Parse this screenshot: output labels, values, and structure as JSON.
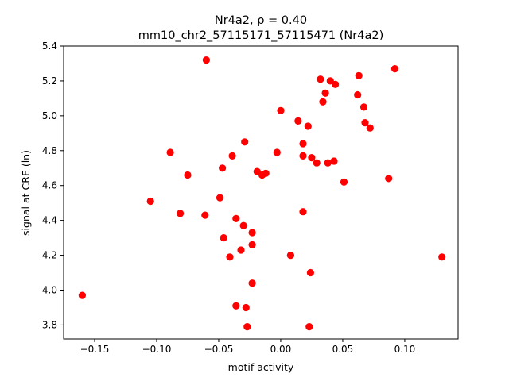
{
  "chart_data": {
    "type": "scatter",
    "title_line1": "Nr4a2, ρ = 0.40",
    "title_line2": "mm10_chr2_57115171_57115471 (Nr4a2)",
    "xlabel": "motif activity",
    "ylabel": "signal at CRE (ln)",
    "xlim": [
      -0.175,
      0.143
    ],
    "ylim": [
      3.72,
      5.4
    ],
    "xticks": [
      -0.15,
      -0.1,
      -0.05,
      0.0,
      0.05,
      0.1
    ],
    "xtick_labels": [
      "−0.15",
      "−0.10",
      "−0.05",
      "0.00",
      "0.05",
      "0.10"
    ],
    "yticks": [
      3.8,
      4.0,
      4.2,
      4.4,
      4.6,
      4.8,
      5.0,
      5.2,
      5.4
    ],
    "ytick_labels": [
      "3.8",
      "4.0",
      "4.2",
      "4.4",
      "4.6",
      "4.8",
      "5.0",
      "5.2",
      "5.4"
    ],
    "grid": false,
    "marker_color": "#ff0000",
    "points": [
      {
        "x": -0.06,
        "y": 5.32
      },
      {
        "x": 0.092,
        "y": 5.27
      },
      {
        "x": 0.063,
        "y": 5.23
      },
      {
        "x": 0.032,
        "y": 5.21
      },
      {
        "x": 0.04,
        "y": 5.2
      },
      {
        "x": 0.044,
        "y": 5.18
      },
      {
        "x": 0.036,
        "y": 5.13
      },
      {
        "x": 0.062,
        "y": 5.12
      },
      {
        "x": 0.034,
        "y": 5.08
      },
      {
        "x": 0.067,
        "y": 5.05
      },
      {
        "x": 0.0,
        "y": 5.03
      },
      {
        "x": 0.014,
        "y": 4.97
      },
      {
        "x": 0.068,
        "y": 4.96
      },
      {
        "x": 0.022,
        "y": 4.94
      },
      {
        "x": 0.072,
        "y": 4.93
      },
      {
        "x": -0.029,
        "y": 4.85
      },
      {
        "x": 0.018,
        "y": 4.84
      },
      {
        "x": -0.089,
        "y": 4.79
      },
      {
        "x": -0.003,
        "y": 4.79
      },
      {
        "x": -0.039,
        "y": 4.77
      },
      {
        "x": 0.018,
        "y": 4.77
      },
      {
        "x": 0.025,
        "y": 4.76
      },
      {
        "x": 0.043,
        "y": 4.74
      },
      {
        "x": 0.029,
        "y": 4.73
      },
      {
        "x": 0.038,
        "y": 4.73
      },
      {
        "x": -0.047,
        "y": 4.7
      },
      {
        "x": -0.019,
        "y": 4.68
      },
      {
        "x": -0.012,
        "y": 4.67
      },
      {
        "x": -0.015,
        "y": 4.66
      },
      {
        "x": -0.075,
        "y": 4.66
      },
      {
        "x": 0.087,
        "y": 4.64
      },
      {
        "x": 0.051,
        "y": 4.62
      },
      {
        "x": -0.049,
        "y": 4.53
      },
      {
        "x": -0.105,
        "y": 4.51
      },
      {
        "x": 0.018,
        "y": 4.45
      },
      {
        "x": -0.081,
        "y": 4.44
      },
      {
        "x": -0.061,
        "y": 4.43
      },
      {
        "x": -0.036,
        "y": 4.41
      },
      {
        "x": -0.03,
        "y": 4.37
      },
      {
        "x": -0.023,
        "y": 4.33
      },
      {
        "x": -0.046,
        "y": 4.3
      },
      {
        "x": -0.023,
        "y": 4.26
      },
      {
        "x": -0.032,
        "y": 4.23
      },
      {
        "x": 0.008,
        "y": 4.2
      },
      {
        "x": -0.041,
        "y": 4.19
      },
      {
        "x": 0.13,
        "y": 4.19
      },
      {
        "x": 0.024,
        "y": 4.1
      },
      {
        "x": -0.023,
        "y": 4.04
      },
      {
        "x": -0.16,
        "y": 3.97
      },
      {
        "x": -0.036,
        "y": 3.91
      },
      {
        "x": -0.028,
        "y": 3.9
      },
      {
        "x": -0.027,
        "y": 3.79
      },
      {
        "x": 0.023,
        "y": 3.79
      }
    ]
  }
}
